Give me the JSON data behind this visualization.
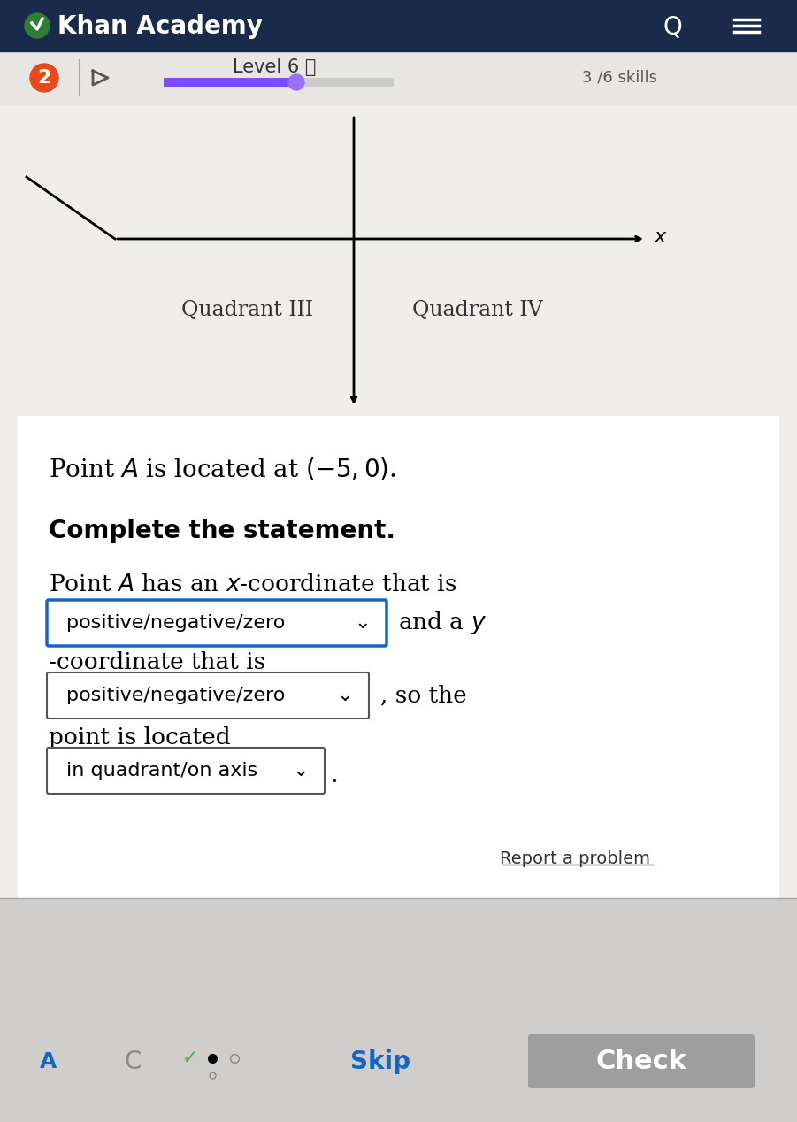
{
  "bg_color_top": "#1a2a4a",
  "bg_color_main": "#f0eeeb",
  "bg_color_bottom": "#e0dedd",
  "title_text": "Khan Academy",
  "logo_color": "#2e7d32",
  "flame_color": "#e64a19",
  "level_text": "Level 6 ⓘ",
  "skills_text": "3 /6 skills",
  "progress_color": "#7c4dff",
  "progress_end_color": "#9c6fff",
  "quadrant3_label": "Quadrant III",
  "quadrant4_label": "Quadrant IV",
  "x_axis_label": "x",
  "point_statement": "Point $\\mathit{A}$ is located at $(-5, 0)$.",
  "complete_statement": "Complete the statement.",
  "line1": "Point $\\mathit{A}$ has an $x$-coordinate that is",
  "dropdown1": "positive/negative/zero",
  "line2_suffix": "and a $y$",
  "line3": "-coordinate that is",
  "dropdown2": "positive/negative/zero",
  "line4_suffix": ", so the",
  "line5": "point is located",
  "dropdown3": "in quadrant/on axis",
  "line6_suffix": ".",
  "report_text": "Report a problem",
  "skip_text": "Skip",
  "check_text": "Check",
  "dropdown_border_color": "#1565c0",
  "dropdown_border_color2": "#555555",
  "skip_color": "#1565c0",
  "check_bg": "#9e9e9e",
  "check_text_color": "#ffffff"
}
